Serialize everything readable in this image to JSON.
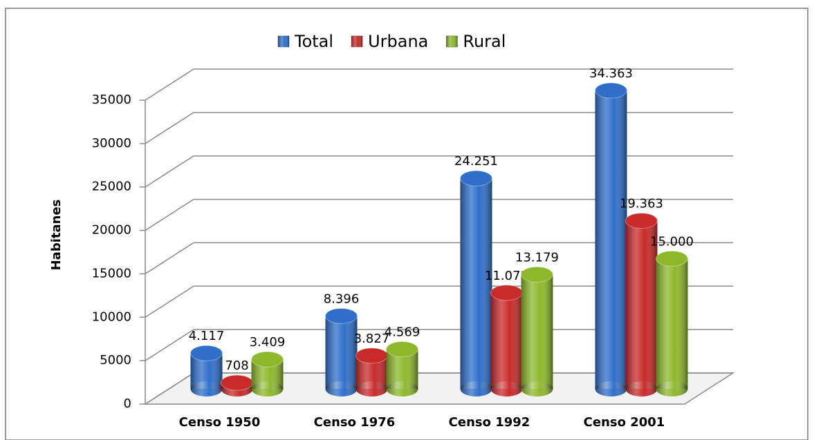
{
  "chart_data": {
    "type": "bar3d",
    "categories": [
      "Censo 1950",
      "Censo 1976",
      "Censo 1992",
      "Censo 2001"
    ],
    "series": [
      {
        "name": "Total",
        "color": "#2f6fca",
        "values": [
          4117,
          8396,
          24251,
          34363
        ],
        "value_labels": [
          "4.117",
          "8.396",
          "24.251",
          "34.363"
        ]
      },
      {
        "name": "Urbana",
        "color": "#c92a2a",
        "values": [
          708,
          3827,
          11072,
          19363
        ],
        "value_labels": [
          "708",
          "3.827",
          "11.072",
          "19.363"
        ]
      },
      {
        "name": "Rural",
        "color": "#8db82b",
        "values": [
          3409,
          4569,
          13179,
          15000
        ],
        "value_labels": [
          "3.409",
          "4.569",
          "13.179",
          "15.000"
        ]
      }
    ],
    "y_label": "Habitanes",
    "ylim": [
      0,
      35000
    ],
    "yticks": [
      0,
      5000,
      10000,
      15000,
      20000,
      25000,
      30000,
      35000
    ],
    "grid": true,
    "legend": "top"
  }
}
